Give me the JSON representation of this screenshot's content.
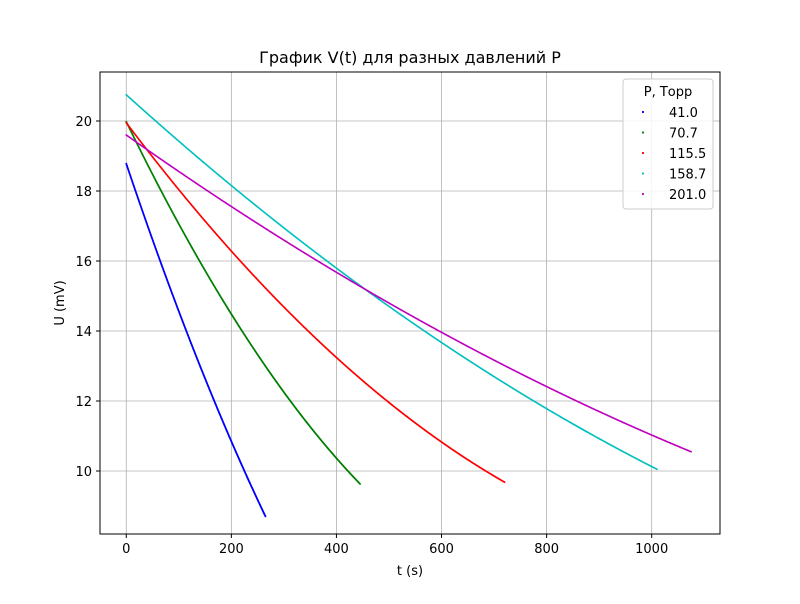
{
  "chart_data": {
    "type": "scatter",
    "title": "График V(t) для разных давлений P",
    "xlabel": "t (s)",
    "ylabel": "U (mV)",
    "xlim": [
      -50,
      1130
    ],
    "ylim": [
      8.2,
      21.4
    ],
    "xticks": [
      0,
      200,
      400,
      600,
      800,
      1000
    ],
    "yticks": [
      10,
      12,
      14,
      16,
      18,
      20
    ],
    "grid": true,
    "legend": {
      "title": "P, Торр",
      "placement": "top-right"
    },
    "series": [
      {
        "name": "41.0",
        "color": "#0000ff",
        "start": [
          0,
          18.78
        ],
        "end": [
          265,
          8.7
        ],
        "mid": [
          130,
          13.3
        ]
      },
      {
        "name": "70.7",
        "color": "#008000",
        "start": [
          0,
          19.98
        ],
        "end": [
          445,
          9.63
        ],
        "mid": [
          220,
          13.95
        ]
      },
      {
        "name": "115.5",
        "color": "#ff0000",
        "start": [
          0,
          19.95
        ],
        "end": [
          720,
          9.68
        ],
        "mid": [
          360,
          13.8
        ]
      },
      {
        "name": "158.7",
        "color": "#00bfbf",
        "start": [
          0,
          20.75
        ],
        "end": [
          1010,
          10.05
        ],
        "mid": [
          500,
          14.65
        ]
      },
      {
        "name": "201.0",
        "color": "#bf00bf",
        "start": [
          0,
          19.6
        ],
        "end": [
          1075,
          10.55
        ],
        "mid": [
          535,
          14.48
        ]
      }
    ]
  }
}
